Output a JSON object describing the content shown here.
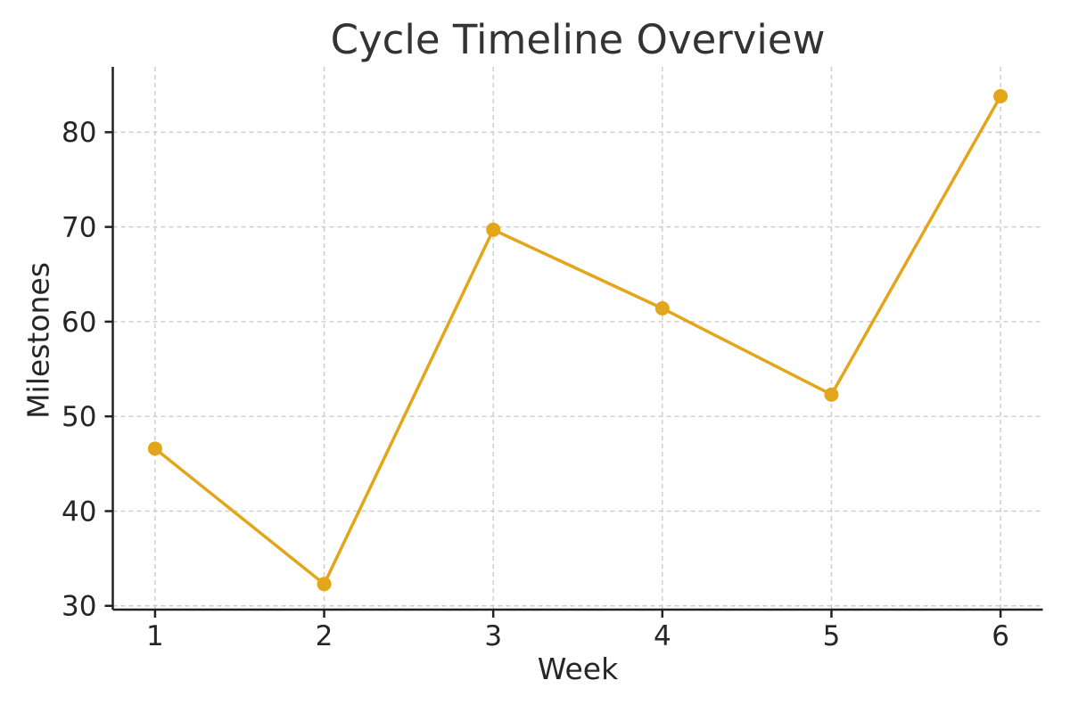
{
  "chart_data": {
    "type": "line",
    "title": "Cycle Timeline Overview",
    "xlabel": "Week",
    "ylabel": "Milestones",
    "x": [
      1,
      2,
      3,
      4,
      5,
      6
    ],
    "series": [
      {
        "name": "Milestones",
        "values": [
          46.6,
          32.3,
          69.7,
          61.4,
          52.3,
          83.8
        ]
      }
    ],
    "x_ticks": [
      "1",
      "2",
      "3",
      "4",
      "5",
      "6"
    ],
    "y_ticks": [
      30,
      40,
      50,
      60,
      70,
      80
    ],
    "xlim": [
      0.75,
      6.25
    ],
    "ylim": [
      29.6,
      86.9
    ],
    "grid": true,
    "grid_style": "dashed",
    "legend_position": "none",
    "line_color": "#E3A51A",
    "marker": "circle",
    "marker_color": "#E3A51A",
    "grid_color": "#CCCCCC",
    "axis_color": "#222222",
    "tick_text_color": "#262626"
  }
}
